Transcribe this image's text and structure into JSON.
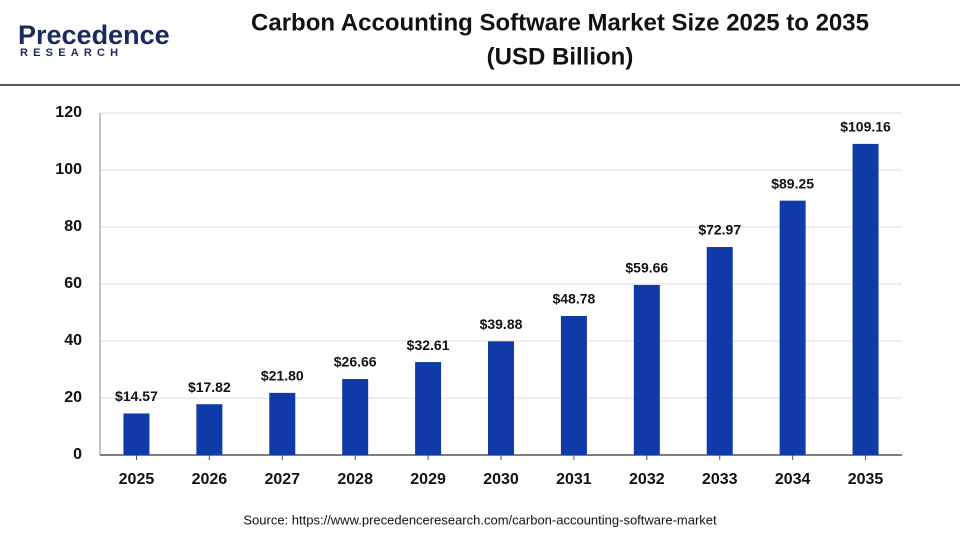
{
  "brand": {
    "name": "Precedence",
    "tagline": "RESEARCH"
  },
  "chart_data": {
    "type": "bar",
    "title": "Carbon Accounting Software Market Size 2025 to 2035",
    "subtitle": "(USD Billion)",
    "categories": [
      "2025",
      "2026",
      "2027",
      "2028",
      "2029",
      "2030",
      "2031",
      "2032",
      "2033",
      "2034",
      "2035"
    ],
    "values": [
      14.57,
      17.82,
      21.8,
      26.66,
      32.61,
      39.88,
      48.78,
      59.66,
      72.97,
      89.25,
      109.16
    ],
    "value_labels": [
      "$14.57",
      "$17.82",
      "$21.80",
      "$26.66",
      "$32.61",
      "$39.88",
      "$48.78",
      "$59.66",
      "$72.97",
      "$89.25",
      "$109.16"
    ],
    "color": "#0f3aa8",
    "ylim": [
      0,
      120
    ],
    "yticks": [
      0,
      20,
      40,
      60,
      80,
      100,
      120
    ],
    "grid": true,
    "source": "Source: https://www.precedenceresearch.com/carbon-accounting-software-market"
  }
}
